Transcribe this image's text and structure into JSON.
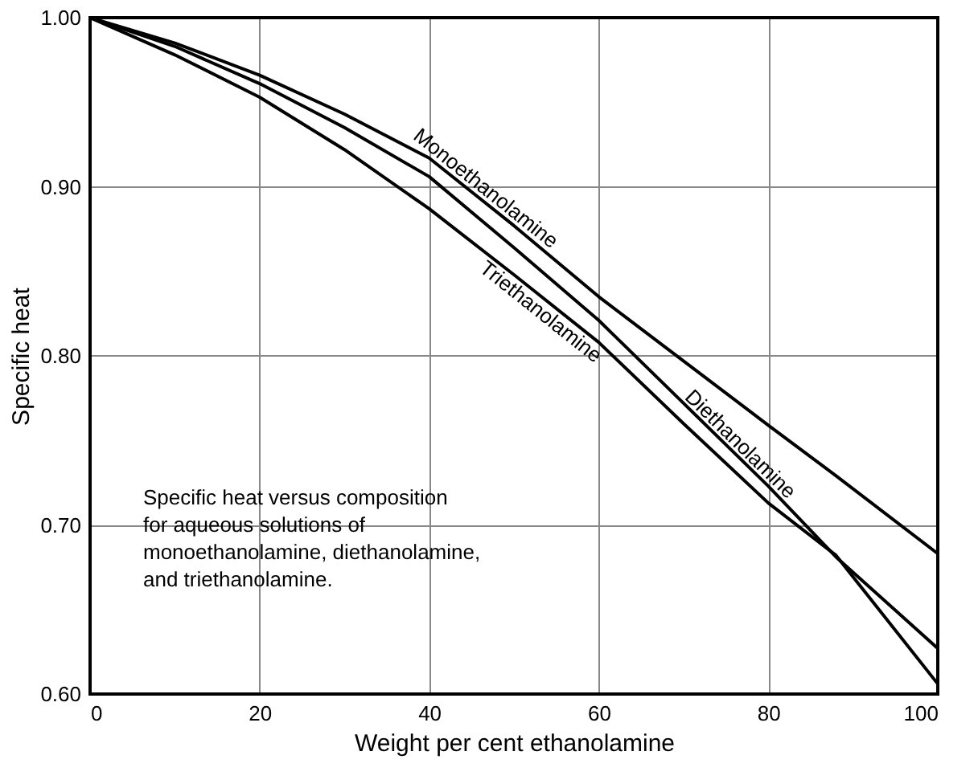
{
  "chart_data": {
    "type": "line",
    "xlabel": "Weight per cent ethanolamine",
    "ylabel": "Specific heat",
    "x": [
      0,
      10,
      20,
      30,
      40,
      50,
      60,
      70,
      80,
      88,
      100
    ],
    "series": [
      {
        "name": "Monoethanolamine",
        "color": "#000000",
        "values": [
          1.0,
          0.985,
          0.966,
          0.943,
          0.917,
          0.877,
          0.835,
          0.797,
          0.759,
          0.729,
          0.683
        ]
      },
      {
        "name": "Diethanolamine",
        "color": "#000000",
        "values": [
          1.0,
          0.983,
          0.961,
          0.935,
          0.906,
          0.864,
          0.821,
          0.772,
          0.723,
          0.681,
          0.627
        ]
      },
      {
        "name": "Triethanolamine",
        "color": "#000000",
        "values": [
          1.0,
          0.978,
          0.953,
          0.922,
          0.887,
          0.848,
          0.808,
          0.76,
          0.713,
          0.682,
          0.606
        ]
      }
    ],
    "xlim": [
      0,
      100
    ],
    "xticks": [
      0,
      20,
      40,
      60,
      80,
      100
    ],
    "ylim": [
      0.6,
      1.0
    ],
    "yticks": [
      {
        "value": 0.6,
        "label": "0.60"
      },
      {
        "value": 0.7,
        "label": "0.70"
      },
      {
        "value": 0.8,
        "label": "0.80"
      },
      {
        "value": 0.9,
        "label": "0.90"
      },
      {
        "value": 1.0,
        "label": "1.00"
      }
    ],
    "grid": true,
    "marker": "none",
    "line_style": "solid",
    "annotations": [
      "Specific heat versus composition\nfor aqueous solutions of\nmonoethanolamine, diethanolamine,\nand triethanolamine."
    ]
  }
}
